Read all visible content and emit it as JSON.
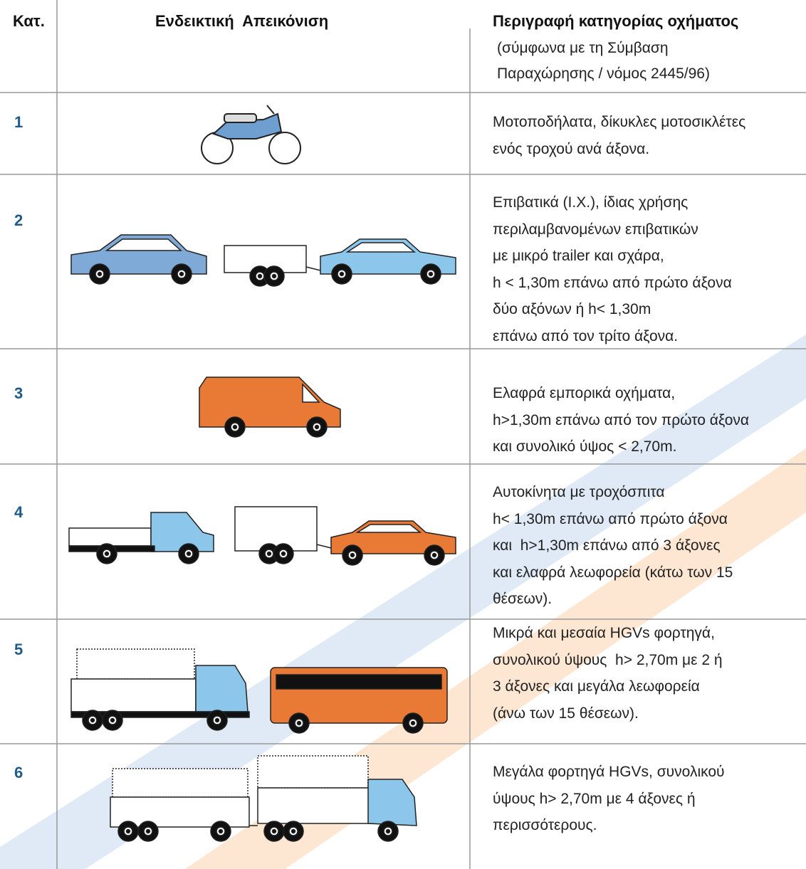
{
  "header": {
    "category": "Κατ.",
    "illustration": "Ενδεικτική  Απεικόνιση",
    "description_title": "Περιγραφή κατηγορίας οχήματος",
    "description_note": [
      "(σύμφωνα με τη Σύμβαση",
      "Παραχώρησης / νόμος 2445/96)"
    ]
  },
  "rows": [
    {
      "category": "1",
      "description": [
        "Μοτοποδήλατα, δίκυκλες μοτοσικλέτες",
        "ενός τροχού ανά άξονα."
      ]
    },
    {
      "category": "2",
      "description": [
        "Επιβατικά (Ι.Χ.), ίδιας χρήσης",
        "περιλαμβανομένων επιβατικών",
        "με μικρό trailer και σχάρα,",
        "h < 1,30m επάνω από πρώτο άξονα",
        "δύο αξόνων ή h< 1,30m",
        "επάνω από τον τρίτο άξονα."
      ]
    },
    {
      "category": "3",
      "description": [
        "Ελαφρά εμπορικά οχήματα,",
        "h>1,30m επάνω από τον πρώτο άξονα",
        "και συνολικό ύψος < 2,70m."
      ]
    },
    {
      "category": "4",
      "description": [
        "Αυτοκίνητα με τροχόσπιτα",
        "h< 1,30m επάνω από πρώτο άξονα",
        "και  h>1,30m επάνω από 3 άξονες",
        "και ελαφρά λεωφορεία (κάτω των 15",
        "θέσεων)."
      ]
    },
    {
      "category": "5",
      "description": [
        "Μικρά και μεσαία HGVs φορτηγά,",
        "συνολικού ύψους  h> 2,70m με 2 ή",
        "3 άξονες και μεγάλα λεωφορεία",
        "(άνω των 15 θέσεων)."
      ]
    },
    {
      "category": "6",
      "description": [
        "Μεγάλα φορτηγά HGVs, συνολικού",
        "ύψους h> 2,70m με 4 άξονες ή",
        "περισσότερους."
      ]
    }
  ]
}
